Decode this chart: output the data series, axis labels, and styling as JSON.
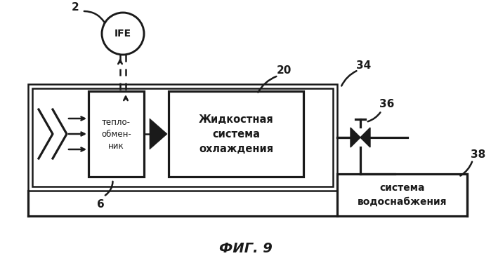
{
  "bg_color": "#ffffff",
  "title": "ФИГ. 9",
  "title_fontsize": 14,
  "labels": {
    "IFE": "IFE",
    "heat_exchanger": "тепло-\nобмен-\nник",
    "liquid_cooling": "Жидкостная\nсистема\nохлаждения",
    "water_supply": "система\nводоснабжения",
    "num_2": "2",
    "num_6": "6",
    "num_20": "20",
    "num_34": "34",
    "num_36": "36",
    "num_38": "38"
  },
  "colors": {
    "black": "#1a1a1a",
    "white": "#ffffff"
  },
  "lw": 1.8
}
